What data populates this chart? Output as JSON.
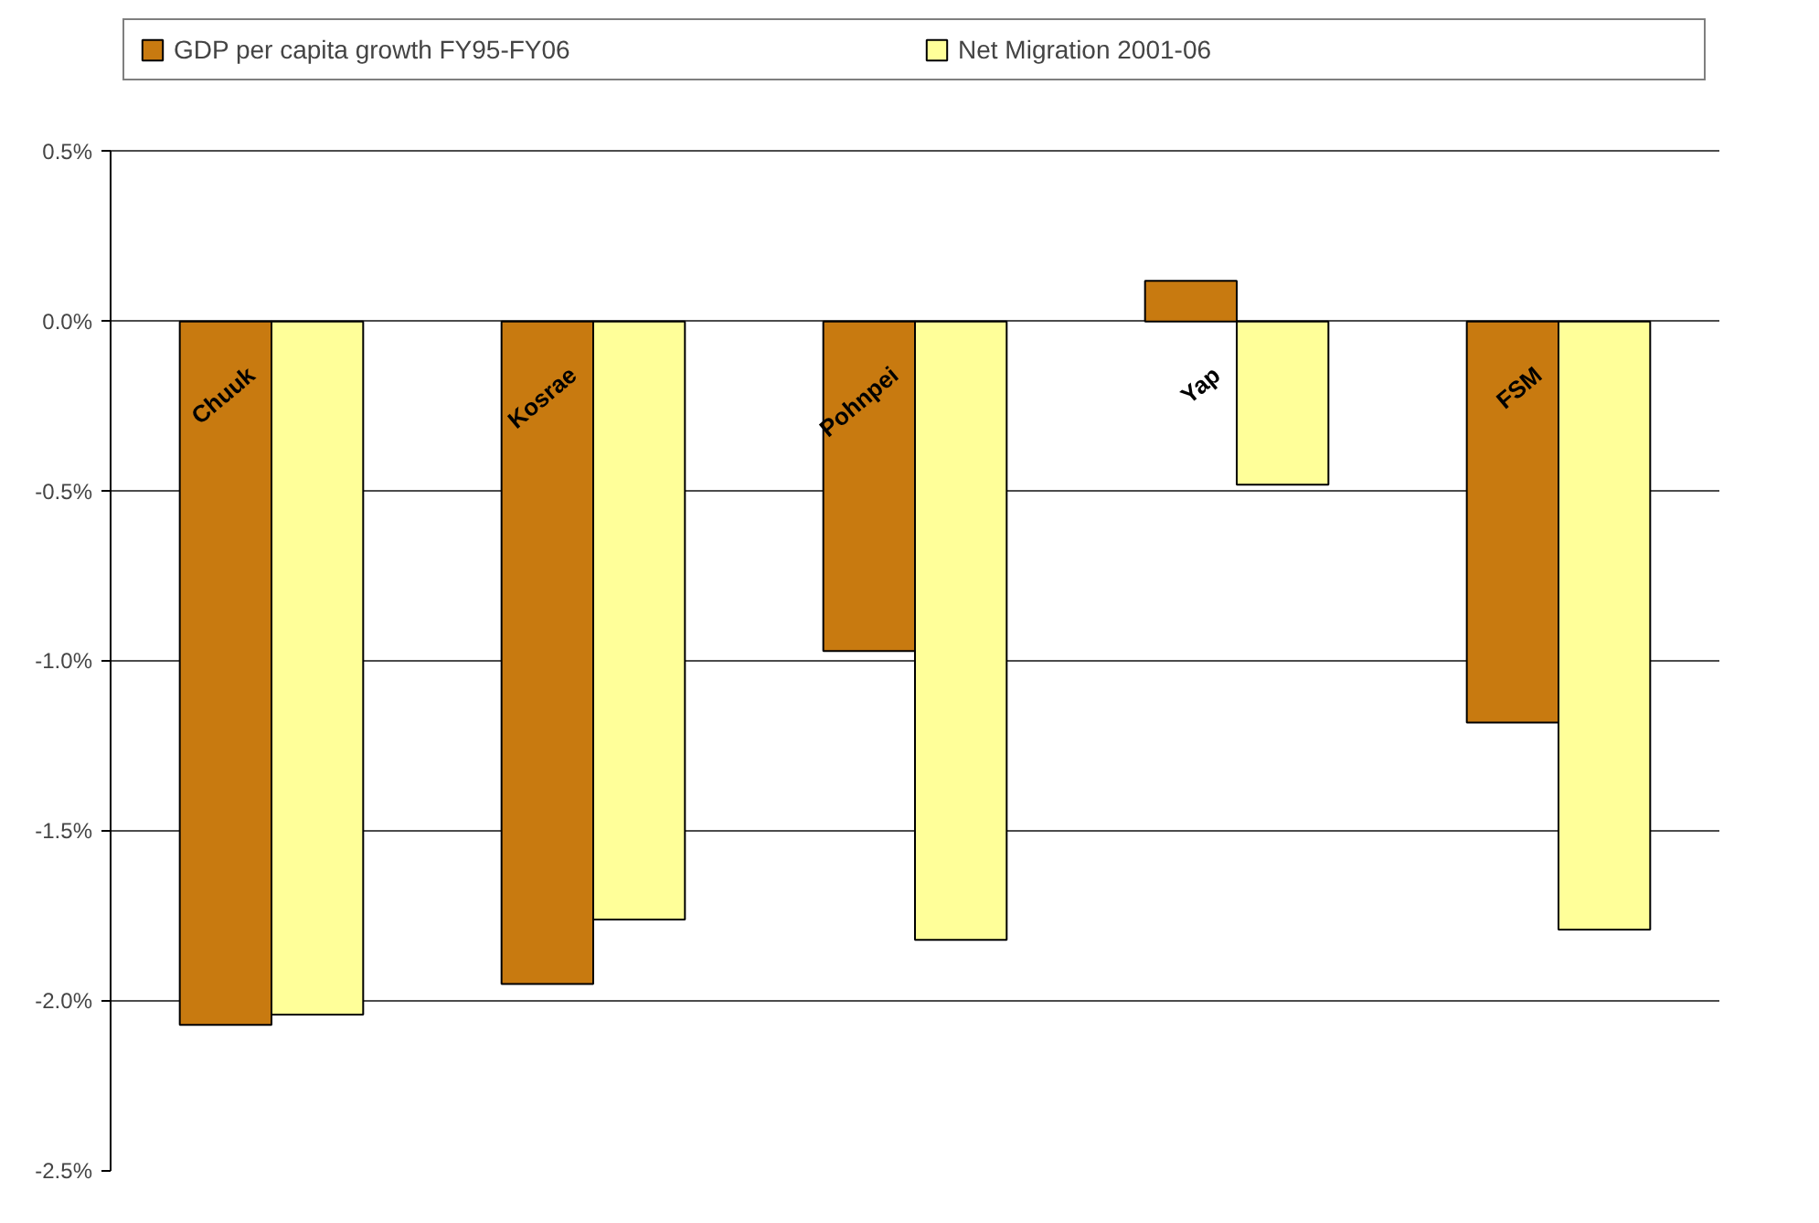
{
  "chart_data": {
    "type": "bar",
    "categories": [
      "Chuuk",
      "Kosrae",
      "Pohnpei",
      "Yap",
      "FSM"
    ],
    "series": [
      {
        "name": "GDP per capita growth FY95-FY06",
        "color": "#c87a10",
        "values": [
          -2.07,
          -1.95,
          -0.97,
          0.12,
          -1.18
        ]
      },
      {
        "name": "Net Migration 2001-06",
        "color": "#ffff99",
        "values": [
          -2.04,
          -1.76,
          -1.82,
          -0.48,
          -1.79
        ]
      }
    ],
    "ylim": [
      -2.5,
      0.5
    ],
    "yticks": [
      {
        "value": 0.5,
        "label": "0.5%"
      },
      {
        "value": 0.0,
        "label": "0.0%"
      },
      {
        "value": -0.5,
        "label": "-0.5%"
      },
      {
        "value": -1.0,
        "label": "-1.0%"
      },
      {
        "value": -1.5,
        "label": "-1.5%"
      },
      {
        "value": -2.0,
        "label": "-2.0%"
      },
      {
        "value": -2.5,
        "label": "-2.5%"
      }
    ],
    "grid": "y",
    "legend": "top"
  }
}
